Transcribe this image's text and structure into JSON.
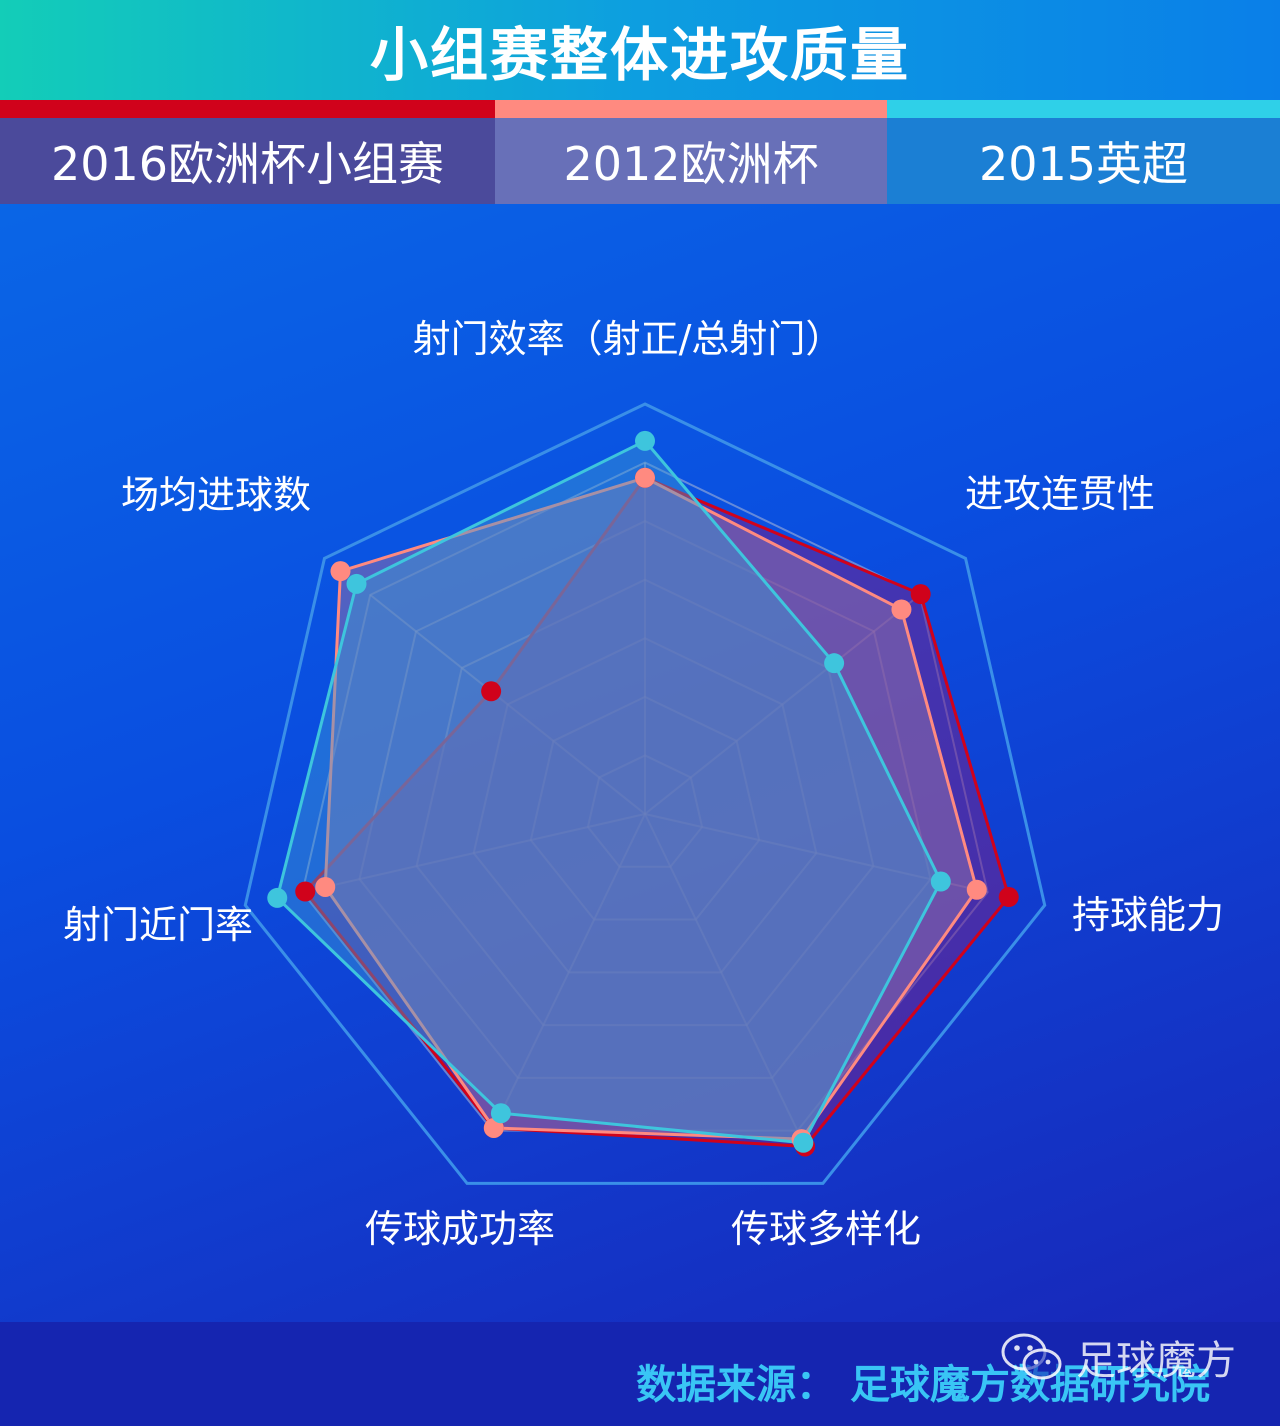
{
  "header": {
    "title": "小组赛整体进攻质量"
  },
  "legend": [
    {
      "label": "2016欧洲杯小组赛",
      "color": "#d0021b"
    },
    {
      "label": "2012欧洲杯",
      "color": "#ff8a80"
    },
    {
      "label": "2015英超",
      "color": "#3ec5dd"
    }
  ],
  "chart_data": {
    "type": "radar",
    "title": "小组赛整体进攻质量",
    "axes": [
      "射门效率（射正/总射门）",
      "进攻连贯性",
      "持球能力",
      "传球多样化",
      "传球成功率",
      "射门近门率",
      "场均进球数"
    ],
    "max": 1.0,
    "grid_levels": 7,
    "series": [
      {
        "name": "2016欧洲杯小组赛",
        "color": "#d0021b",
        "fill": "rgba(115,35,140,0.55)",
        "values": [
          0.82,
          0.86,
          0.91,
          0.9,
          0.85,
          0.85,
          0.48
        ]
      },
      {
        "name": "2012欧洲杯",
        "color": "#ff8a80",
        "fill": "rgba(140,110,170,0.55)",
        "values": [
          0.82,
          0.8,
          0.83,
          0.88,
          0.85,
          0.8,
          0.95
        ]
      },
      {
        "name": "2015英超",
        "color": "#3ec5dd",
        "fill": "rgba(60,150,210,0.45)",
        "values": [
          0.91,
          0.59,
          0.74,
          0.89,
          0.81,
          0.92,
          0.9
        ]
      }
    ]
  },
  "footer": {
    "source": "数据来源：  足球魔方数据研究院",
    "watermark": "足球魔方"
  }
}
